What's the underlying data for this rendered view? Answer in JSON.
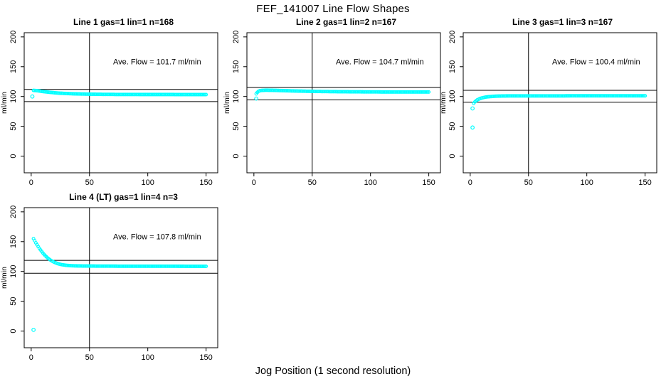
{
  "page": {
    "title": "FEF_141007  Line Flow Shapes",
    "xlabel_bottom": "Jog Position (1 second resolution)"
  },
  "chart_data": {
    "type": "scatter",
    "title": "FEF_141007  Line Flow Shapes",
    "xlabel": "Jog Position (1 second resolution)",
    "ylabel": "ml/min",
    "point_color": "#00ffff",
    "axis_color": "#000000",
    "background": "#ffffff",
    "xlim": [
      -6,
      160
    ],
    "ylim": [
      -28,
      207
    ],
    "xticks": [
      0,
      50,
      100,
      150
    ],
    "yticks": [
      0,
      50,
      100,
      150,
      200
    ],
    "legend": "none",
    "grid": false,
    "panels": [
      {
        "title": "Line 1 gas=1 lin=1 n=168",
        "n": 168,
        "ave_flow": 101.7,
        "annotation": "Ave. Flow =  101.7  ml/min",
        "ylabel": "ml/min",
        "vline": 50,
        "hlines": [
          91.5,
          111.9
        ],
        "profile": [
          [
            2,
            110.2
          ],
          [
            4,
            110.0
          ],
          [
            6,
            109.5
          ],
          [
            8,
            108.9
          ],
          [
            10,
            108.3
          ],
          [
            14,
            107.4
          ],
          [
            18,
            106.6
          ],
          [
            22,
            105.9
          ],
          [
            26,
            105.4
          ],
          [
            30,
            105.0
          ],
          [
            36,
            104.5
          ],
          [
            42,
            104.2
          ],
          [
            50,
            103.9
          ],
          [
            60,
            103.6
          ],
          [
            75,
            103.4
          ],
          [
            95,
            103.3
          ],
          [
            120,
            103.3
          ],
          [
            150,
            103.2
          ]
        ],
        "outliers": [
          [
            1,
            100.0
          ]
        ]
      },
      {
        "title": "Line 2 gas=1 lin=2 n=167",
        "n": 167,
        "ave_flow": 104.7,
        "annotation": "Ave. Flow =  104.7  ml/min",
        "ylabel": "ml/min",
        "vline": 50,
        "hlines": [
          94.2,
          115.2
        ],
        "profile": [
          [
            2,
            104.5
          ],
          [
            3,
            107.0
          ],
          [
            4,
            108.8
          ],
          [
            5,
            109.6
          ],
          [
            7,
            110.2
          ],
          [
            10,
            110.5
          ],
          [
            15,
            110.4
          ],
          [
            20,
            110.1
          ],
          [
            25,
            109.8
          ],
          [
            30,
            109.5
          ],
          [
            40,
            109.0
          ],
          [
            50,
            108.6
          ],
          [
            60,
            108.3
          ],
          [
            75,
            108.0
          ],
          [
            90,
            107.8
          ],
          [
            110,
            107.6
          ],
          [
            130,
            107.5
          ],
          [
            150,
            107.5
          ]
        ],
        "outliers": [
          [
            2,
            96.5
          ]
        ]
      },
      {
        "title": "Line 3 gas=1 lin=3 n=167",
        "n": 167,
        "ave_flow": 100.4,
        "annotation": "Ave. Flow =  100.4  ml/min",
        "ylabel": "ml/min",
        "vline": 50,
        "hlines": [
          90.4,
          110.4
        ],
        "profile": [
          [
            3,
            88.5
          ],
          [
            4,
            91.0
          ],
          [
            5,
            92.8
          ],
          [
            6,
            94.2
          ],
          [
            8,
            96.2
          ],
          [
            10,
            97.6
          ],
          [
            13,
            98.9
          ],
          [
            16,
            99.7
          ],
          [
            20,
            100.3
          ],
          [
            25,
            100.7
          ],
          [
            30,
            100.9
          ],
          [
            40,
            101.0
          ],
          [
            55,
            101.0
          ],
          [
            70,
            101.0
          ],
          [
            90,
            101.1
          ],
          [
            110,
            101.1
          ],
          [
            130,
            101.2
          ],
          [
            150,
            101.2
          ]
        ],
        "outliers": [
          [
            2,
            48
          ],
          [
            2,
            80
          ]
        ]
      },
      {
        "title": "Line 4 (LT) gas=1 lin=4 n=3",
        "n": 3,
        "ave_flow": 107.8,
        "annotation": "Ave. Flow =  107.8  ml/min",
        "ylabel": "ml/min",
        "vline": 50,
        "hlines": [
          97.0,
          118.6
        ],
        "profile": [
          [
            2,
            155
          ],
          [
            3,
            151.5
          ],
          [
            4,
            148
          ],
          [
            5,
            144.8
          ],
          [
            6,
            141.7
          ],
          [
            8,
            136
          ],
          [
            10,
            130.9
          ],
          [
            12,
            126.5
          ],
          [
            14,
            122.8
          ],
          [
            16,
            119.7
          ],
          [
            18,
            117.2
          ],
          [
            20,
            115.2
          ],
          [
            23,
            112.9
          ],
          [
            26,
            111.4
          ],
          [
            30,
            110.2
          ],
          [
            34,
            109.6
          ],
          [
            38,
            109.3
          ],
          [
            44,
            109.1
          ],
          [
            50,
            109.0
          ],
          [
            60,
            108.9
          ],
          [
            75,
            108.8
          ],
          [
            95,
            108.7
          ],
          [
            120,
            108.7
          ],
          [
            150,
            108.6
          ]
        ],
        "outliers": [
          [
            2,
            2
          ]
        ]
      }
    ],
    "annotation_anchor": {
      "x": 108,
      "y": 154
    }
  }
}
